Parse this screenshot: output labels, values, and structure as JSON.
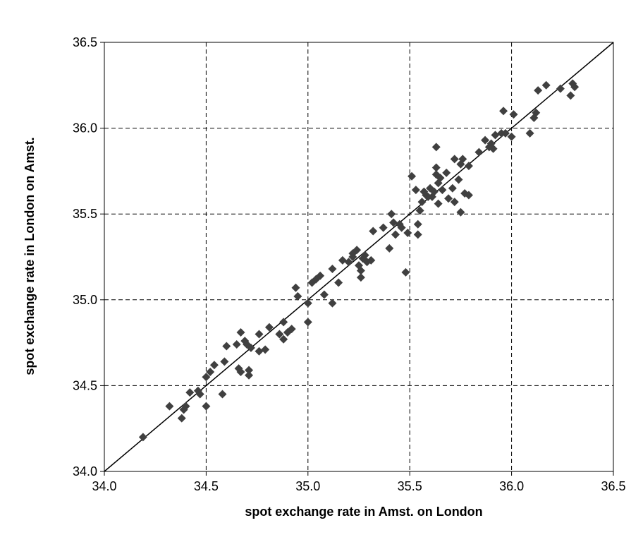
{
  "chart_data": {
    "type": "scatter",
    "title": "",
    "xlabel": "spot exchange rate in Amst. on London",
    "ylabel": "spot exchange rate in London on Amst.",
    "xlim": [
      34.0,
      36.5
    ],
    "ylim": [
      34.0,
      36.5
    ],
    "x_ticks": [
      "34.0",
      "34.5",
      "35.0",
      "35.5",
      "36.0",
      "36.5"
    ],
    "y_ticks": [
      "34.0",
      "34.5",
      "35.0",
      "35.5",
      "36.0",
      "36.5"
    ],
    "grid": true,
    "reference_line": {
      "from": [
        34.0,
        34.0
      ],
      "to": [
        36.5,
        36.5
      ]
    },
    "marker_color": "#404040",
    "points": [
      [
        34.19,
        34.2
      ],
      [
        34.32,
        34.38
      ],
      [
        34.38,
        34.31
      ],
      [
        34.39,
        34.36
      ],
      [
        34.4,
        34.38
      ],
      [
        34.42,
        34.46
      ],
      [
        34.46,
        34.47
      ],
      [
        34.47,
        34.45
      ],
      [
        34.5,
        34.38
      ],
      [
        34.5,
        34.55
      ],
      [
        34.52,
        34.58
      ],
      [
        34.54,
        34.62
      ],
      [
        34.58,
        34.45
      ],
      [
        34.59,
        34.64
      ],
      [
        34.6,
        34.73
      ],
      [
        34.65,
        34.74
      ],
      [
        34.66,
        34.6
      ],
      [
        34.67,
        34.58
      ],
      [
        34.67,
        34.81
      ],
      [
        34.69,
        34.76
      ],
      [
        34.7,
        34.74
      ],
      [
        34.71,
        34.56
      ],
      [
        34.71,
        34.59
      ],
      [
        34.72,
        34.72
      ],
      [
        34.76,
        34.8
      ],
      [
        34.76,
        34.7
      ],
      [
        34.79,
        34.71
      ],
      [
        34.81,
        34.84
      ],
      [
        34.86,
        34.8
      ],
      [
        34.88,
        34.77
      ],
      [
        34.88,
        34.87
      ],
      [
        34.9,
        34.81
      ],
      [
        34.92,
        34.83
      ],
      [
        34.94,
        35.07
      ],
      [
        34.95,
        35.02
      ],
      [
        35.0,
        34.87
      ],
      [
        35.0,
        34.98
      ],
      [
        35.02,
        35.1
      ],
      [
        35.04,
        35.12
      ],
      [
        35.06,
        35.14
      ],
      [
        35.08,
        35.03
      ],
      [
        35.12,
        34.98
      ],
      [
        35.12,
        35.18
      ],
      [
        35.15,
        35.1
      ],
      [
        35.17,
        35.23
      ],
      [
        35.2,
        35.22
      ],
      [
        35.22,
        35.25
      ],
      [
        35.22,
        35.27
      ],
      [
        35.24,
        35.29
      ],
      [
        35.25,
        35.2
      ],
      [
        35.26,
        35.13
      ],
      [
        35.26,
        35.17
      ],
      [
        35.27,
        35.24
      ],
      [
        35.28,
        35.26
      ],
      [
        35.29,
        35.22
      ],
      [
        35.31,
        35.23
      ],
      [
        35.32,
        35.4
      ],
      [
        35.37,
        35.42
      ],
      [
        35.4,
        35.3
      ],
      [
        35.41,
        35.5
      ],
      [
        35.42,
        35.45
      ],
      [
        35.43,
        35.38
      ],
      [
        35.45,
        35.44
      ],
      [
        35.46,
        35.42
      ],
      [
        35.48,
        35.16
      ],
      [
        35.49,
        35.39
      ],
      [
        35.51,
        35.72
      ],
      [
        35.53,
        35.64
      ],
      [
        35.54,
        35.44
      ],
      [
        35.54,
        35.38
      ],
      [
        35.55,
        35.52
      ],
      [
        35.56,
        35.57
      ],
      [
        35.57,
        35.63
      ],
      [
        35.58,
        35.61
      ],
      [
        35.59,
        35.6
      ],
      [
        35.6,
        35.65
      ],
      [
        35.61,
        35.6
      ],
      [
        35.62,
        35.63
      ],
      [
        35.63,
        35.73
      ],
      [
        35.63,
        35.89
      ],
      [
        35.63,
        35.77
      ],
      [
        35.64,
        35.56
      ],
      [
        35.64,
        35.68
      ],
      [
        35.65,
        35.71
      ],
      [
        35.66,
        35.64
      ],
      [
        35.68,
        35.74
      ],
      [
        35.69,
        35.59
      ],
      [
        35.71,
        35.65
      ],
      [
        35.72,
        35.57
      ],
      [
        35.72,
        35.82
      ],
      [
        35.74,
        35.7
      ],
      [
        35.75,
        35.51
      ],
      [
        35.75,
        35.79
      ],
      [
        35.76,
        35.82
      ],
      [
        35.77,
        35.62
      ],
      [
        35.79,
        35.61
      ],
      [
        35.79,
        35.78
      ],
      [
        35.84,
        35.86
      ],
      [
        35.87,
        35.93
      ],
      [
        35.89,
        35.89
      ],
      [
        35.9,
        35.91
      ],
      [
        35.91,
        35.88
      ],
      [
        35.92,
        35.96
      ],
      [
        35.95,
        35.97
      ],
      [
        35.96,
        36.1
      ],
      [
        35.97,
        35.97
      ],
      [
        36.0,
        35.95
      ],
      [
        36.01,
        36.08
      ],
      [
        36.09,
        35.97
      ],
      [
        36.11,
        36.06
      ],
      [
        36.12,
        36.09
      ],
      [
        36.13,
        36.22
      ],
      [
        36.17,
        36.25
      ],
      [
        36.24,
        36.23
      ],
      [
        36.29,
        36.19
      ],
      [
        36.3,
        36.26
      ],
      [
        36.31,
        36.24
      ]
    ]
  }
}
